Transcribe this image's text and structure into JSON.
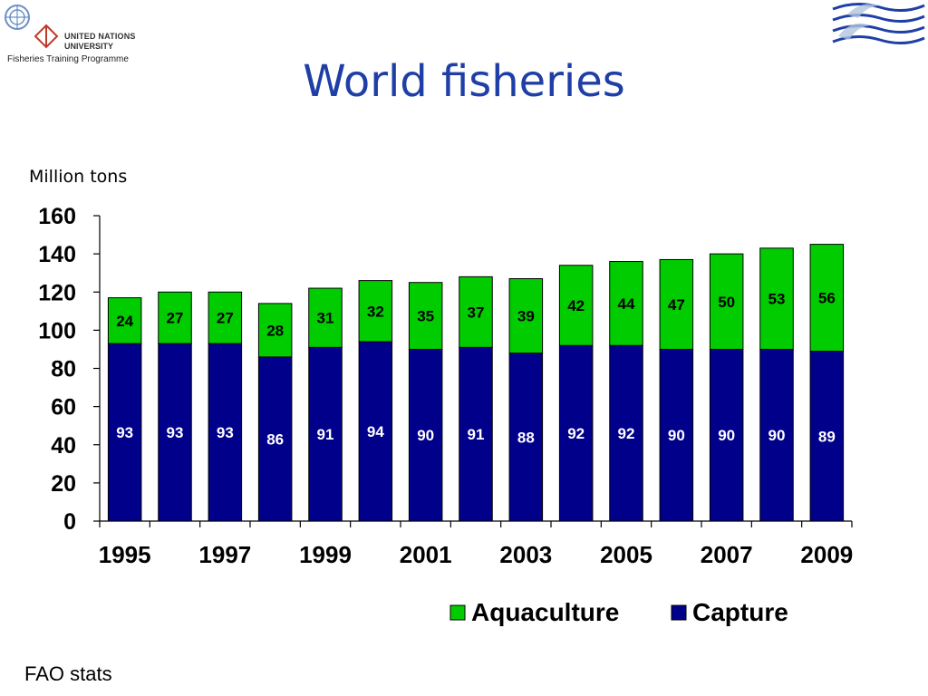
{
  "slide": {
    "title": "World fisheries",
    "unit_label": "Million tons",
    "source": "FAO stats"
  },
  "logos": {
    "unu_line1": "UNITED NATIONS",
    "unu_line2": "UNIVERSITY",
    "unu_line3": "Fisheries Training Programme"
  },
  "colors": {
    "capture": "#00008b",
    "aquaculture": "#00cc00",
    "title": "#1f3fa6"
  },
  "chart_data": {
    "type": "bar",
    "stacked": true,
    "title": "",
    "ylabel": "Million tons",
    "xlabel": "",
    "ylim": [
      0,
      160
    ],
    "yticks": [
      0,
      20,
      40,
      60,
      80,
      100,
      120,
      140,
      160
    ],
    "categories": [
      "1995",
      "1996",
      "1997",
      "1998",
      "1999",
      "2000",
      "2001",
      "2002",
      "2003",
      "2004",
      "2005",
      "2006",
      "2007",
      "2008",
      "2009"
    ],
    "x_tick_labels": [
      "1995",
      "1997",
      "1999",
      "2001",
      "2003",
      "2005",
      "2007",
      "2009"
    ],
    "series": [
      {
        "name": "Capture",
        "values": [
          93,
          93,
          93,
          86,
          91,
          94,
          90,
          91,
          88,
          92,
          92,
          90,
          90,
          90,
          89
        ]
      },
      {
        "name": "Aquaculture",
        "values": [
          24,
          27,
          27,
          28,
          31,
          32,
          35,
          37,
          39,
          42,
          44,
          47,
          50,
          53,
          56
        ]
      }
    ],
    "legend_order": [
      "Aquaculture",
      "Capture"
    ],
    "legend_position": "bottom-right",
    "grid": false
  }
}
